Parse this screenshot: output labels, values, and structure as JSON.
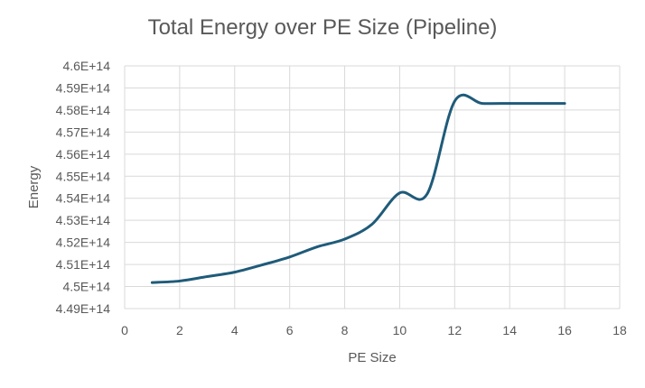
{
  "chart_data": {
    "type": "line",
    "title": "Total Energy over PE Size (Pipeline)",
    "xlabel": "PE Size",
    "ylabel": "Energy",
    "xlim": [
      0,
      18
    ],
    "ylim": [
      449000000000000,
      460000000000000
    ],
    "x_ticks": [
      0,
      2,
      4,
      6,
      8,
      10,
      12,
      14,
      16,
      18
    ],
    "x_tick_labels": [
      "0",
      "2",
      "4",
      "6",
      "8",
      "10",
      "12",
      "14",
      "16",
      "18"
    ],
    "y_ticks": [
      449000000000000,
      450000000000000,
      451000000000000,
      452000000000000,
      453000000000000,
      454000000000000,
      455000000000000,
      456000000000000,
      457000000000000,
      458000000000000,
      459000000000000,
      460000000000000
    ],
    "y_tick_labels": [
      "4.49E+14",
      "4.5E+14",
      "4.51E+14",
      "4.52E+14",
      "4.53E+14",
      "4.54E+14",
      "4.55E+14",
      "4.56E+14",
      "4.57E+14",
      "4.58E+14",
      "4.59E+14",
      "4.6E+14"
    ],
    "grid": true,
    "smooth": true,
    "series": [
      {
        "color": "#1f5b7a",
        "x": [
          1,
          2,
          3,
          4,
          5,
          6,
          7,
          8,
          9,
          10,
          11,
          12,
          13,
          14,
          15,
          16
        ],
        "y": [
          450180000000000,
          450250000000000,
          450450000000000,
          450650000000000,
          450980000000000,
          451340000000000,
          451800000000000,
          452150000000000,
          452830000000000,
          454240000000000,
          454200000000000,
          458400000000000,
          458300000000000,
          458300000000000,
          458300000000000,
          458300000000000
        ]
      }
    ]
  }
}
